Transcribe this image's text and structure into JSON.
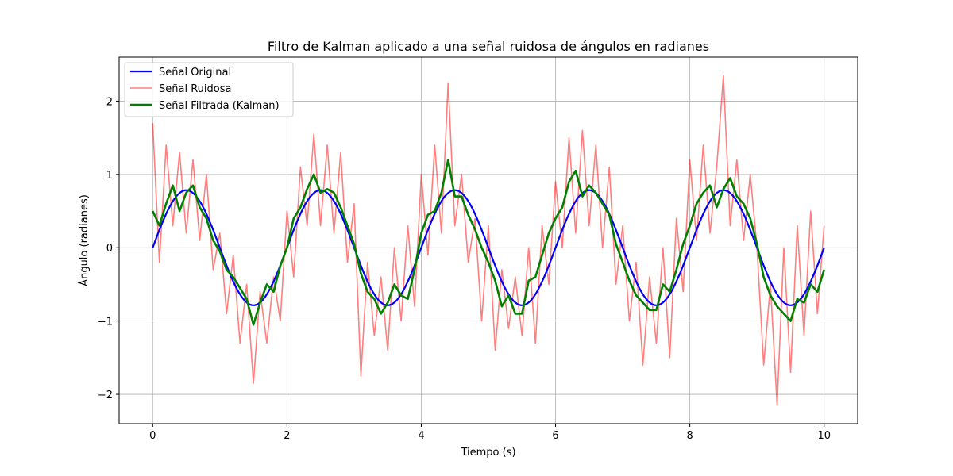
{
  "chart_data": {
    "type": "line",
    "title": "Filtro de Kalman aplicado a una señal ruidosa de ángulos en radianes",
    "xlabel": "Tiempo (s)",
    "ylabel": "Ángulo (radianes)",
    "xlim": [
      -0.5,
      10.5
    ],
    "ylim": [
      -2.4,
      2.6
    ],
    "xticks": [
      0,
      2,
      4,
      6,
      8,
      10
    ],
    "xtick_labels": [
      "0",
      "2",
      "4",
      "6",
      "8",
      "10"
    ],
    "yticks": [
      -2,
      -1,
      0,
      1,
      2
    ],
    "ytick_labels": [
      "−2",
      "−1",
      "0",
      "1",
      "2"
    ],
    "grid": true,
    "legend_position": "top-left",
    "series": [
      {
        "name": "Señal Original",
        "color": "#0000ff",
        "alpha": 1.0,
        "x": [
          0,
          0.25,
          0.5,
          0.75,
          1.0,
          1.25,
          1.5,
          1.75,
          2.0,
          2.25,
          2.5,
          2.75,
          3.0,
          3.25,
          3.5,
          3.75,
          4.0,
          4.25,
          4.5,
          4.75,
          5.0,
          5.25,
          5.5,
          5.75,
          6.0,
          6.25,
          6.5,
          6.75,
          7.0,
          7.25,
          7.5,
          7.75,
          8.0,
          8.25,
          8.5,
          8.75,
          9.0,
          9.25,
          9.5,
          9.75,
          10.0
        ],
        "values": [
          0.0,
          0.55,
          0.785,
          0.55,
          0.0,
          -0.55,
          -0.785,
          -0.55,
          0.0,
          0.55,
          0.785,
          0.55,
          0.0,
          -0.55,
          -0.785,
          -0.55,
          0.0,
          0.55,
          0.785,
          0.55,
          0.0,
          -0.55,
          -0.785,
          -0.55,
          0.0,
          0.55,
          0.785,
          0.55,
          0.0,
          -0.55,
          -0.785,
          -0.55,
          0.0,
          0.55,
          0.785,
          0.55,
          0.0,
          -0.55,
          -0.785,
          -0.55,
          0.0
        ]
      },
      {
        "name": "Señal Ruidosa",
        "color": "#ff0000",
        "alpha": 0.5,
        "x": [
          0,
          0.1,
          0.2,
          0.3,
          0.4,
          0.5,
          0.6,
          0.7,
          0.8,
          0.9,
          1.0,
          1.1,
          1.2,
          1.3,
          1.4,
          1.5,
          1.6,
          1.7,
          1.8,
          1.9,
          2.0,
          2.1,
          2.2,
          2.3,
          2.4,
          2.5,
          2.6,
          2.7,
          2.8,
          2.9,
          3.0,
          3.1,
          3.2,
          3.3,
          3.4,
          3.5,
          3.6,
          3.7,
          3.8,
          3.9,
          4.0,
          4.1,
          4.2,
          4.3,
          4.4,
          4.5,
          4.6,
          4.7,
          4.8,
          4.9,
          5.0,
          5.1,
          5.2,
          5.3,
          5.4,
          5.5,
          5.6,
          5.7,
          5.8,
          5.9,
          6.0,
          6.1,
          6.2,
          6.3,
          6.4,
          6.5,
          6.6,
          6.7,
          6.8,
          6.9,
          7.0,
          7.1,
          7.2,
          7.3,
          7.4,
          7.5,
          7.6,
          7.7,
          7.8,
          7.9,
          8.0,
          8.1,
          8.2,
          8.3,
          8.4,
          8.5,
          8.6,
          8.7,
          8.8,
          8.9,
          9.0,
          9.1,
          9.2,
          9.3,
          9.4,
          9.5,
          9.6,
          9.7,
          9.8,
          9.9,
          10.0
        ],
        "values": [
          1.7,
          -0.2,
          1.4,
          0.3,
          1.3,
          0.2,
          1.2,
          0.1,
          1.0,
          -0.3,
          0.2,
          -0.9,
          -0.1,
          -1.3,
          -0.5,
          -1.85,
          -0.6,
          -1.3,
          -0.4,
          -1.0,
          0.5,
          -0.4,
          1.1,
          0.3,
          1.55,
          0.3,
          1.4,
          0.2,
          1.3,
          -0.2,
          0.6,
          -1.75,
          -0.2,
          -1.2,
          -0.4,
          -1.4,
          0.0,
          -1.0,
          0.3,
          -0.8,
          1.0,
          -0.1,
          1.4,
          0.2,
          2.25,
          0.3,
          1.0,
          -0.2,
          0.4,
          -1.0,
          0.3,
          -1.4,
          -0.3,
          -1.1,
          -0.4,
          -1.2,
          0.0,
          -1.3,
          0.3,
          -0.5,
          0.9,
          0.0,
          1.5,
          0.2,
          1.6,
          0.3,
          1.4,
          0.0,
          1.1,
          -0.5,
          0.3,
          -1.0,
          -0.2,
          -1.6,
          -0.4,
          -1.3,
          0.0,
          -1.5,
          0.4,
          -0.6,
          1.2,
          0.1,
          1.4,
          0.2,
          1.1,
          2.35,
          0.3,
          1.2,
          0.1,
          1.0,
          0.0,
          -1.6,
          -0.5,
          -2.15,
          0.0,
          -1.7,
          0.3,
          -1.2,
          0.5,
          -0.9,
          0.3
        ]
      },
      {
        "name": "Señal Filtrada (Kalman)",
        "color": "#008000",
        "alpha": 1.0,
        "x": [
          0,
          0.1,
          0.2,
          0.3,
          0.4,
          0.5,
          0.6,
          0.7,
          0.8,
          0.9,
          1.0,
          1.1,
          1.2,
          1.3,
          1.4,
          1.5,
          1.6,
          1.7,
          1.8,
          1.9,
          2.0,
          2.1,
          2.2,
          2.3,
          2.4,
          2.5,
          2.6,
          2.7,
          2.8,
          2.9,
          3.0,
          3.1,
          3.2,
          3.3,
          3.4,
          3.5,
          3.6,
          3.7,
          3.8,
          3.9,
          4.0,
          4.1,
          4.2,
          4.3,
          4.4,
          4.5,
          4.6,
          4.7,
          4.8,
          4.9,
          5.0,
          5.1,
          5.2,
          5.3,
          5.4,
          5.5,
          5.6,
          5.7,
          5.8,
          5.9,
          6.0,
          6.1,
          6.2,
          6.3,
          6.4,
          6.5,
          6.6,
          6.7,
          6.8,
          6.9,
          7.0,
          7.1,
          7.2,
          7.3,
          7.4,
          7.5,
          7.6,
          7.7,
          7.8,
          7.9,
          8.0,
          8.1,
          8.2,
          8.3,
          8.4,
          8.5,
          8.6,
          8.7,
          8.8,
          8.9,
          9.0,
          9.1,
          9.2,
          9.3,
          9.4,
          9.5,
          9.6,
          9.7,
          9.8,
          9.9,
          10.0
        ],
        "values": [
          0.5,
          0.3,
          0.6,
          0.85,
          0.5,
          0.75,
          0.85,
          0.55,
          0.4,
          0.1,
          -0.05,
          -0.3,
          -0.4,
          -0.55,
          -0.7,
          -1.05,
          -0.75,
          -0.5,
          -0.6,
          -0.25,
          0.0,
          0.4,
          0.55,
          0.8,
          1.0,
          0.75,
          0.8,
          0.75,
          0.55,
          0.3,
          0.05,
          -0.35,
          -0.6,
          -0.7,
          -0.9,
          -0.75,
          -0.5,
          -0.65,
          -0.7,
          -0.3,
          0.2,
          0.45,
          0.5,
          0.75,
          1.2,
          0.7,
          0.7,
          0.45,
          0.25,
          0.0,
          -0.2,
          -0.45,
          -0.8,
          -0.65,
          -0.9,
          -0.9,
          -0.45,
          -0.4,
          -0.1,
          0.2,
          0.4,
          0.55,
          0.9,
          1.05,
          0.7,
          0.85,
          0.75,
          0.6,
          0.45,
          0.05,
          -0.2,
          -0.45,
          -0.65,
          -0.75,
          -0.85,
          -0.85,
          -0.5,
          -0.6,
          -0.3,
          0.05,
          0.3,
          0.6,
          0.75,
          0.85,
          0.55,
          0.8,
          0.95,
          0.7,
          0.6,
          0.4,
          0.05,
          -0.4,
          -0.65,
          -0.8,
          -0.9,
          -1.0,
          -0.7,
          -0.75,
          -0.5,
          -0.6,
          -0.3
        ]
      }
    ]
  }
}
